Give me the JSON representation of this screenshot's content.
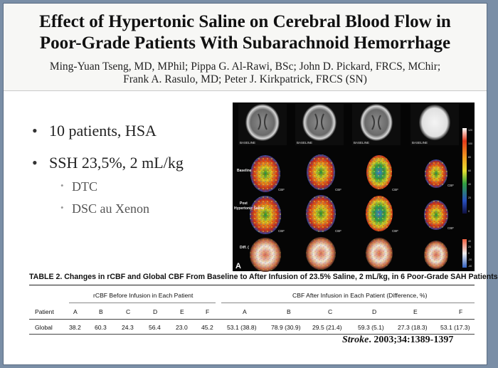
{
  "header": {
    "title_line1": "Effect of Hypertonic Saline on Cerebral Blood Flow in",
    "title_line2": "Poor-Grade Patients With Subarachnoid Hemorrhage",
    "authors_line1": "Ming-Yuan Tseng, MD, MPhil; Pippa G. Al-Rawi, BSc; John D. Pickard, FRCS, MChir;",
    "authors_line2": "Frank A. Rasulo, MD; Peter J. Kirkpatrick, FRCS (SN)"
  },
  "bullets": {
    "main": [
      "10 patients, HSA",
      "SSH 23,5%, 2 mL/kg"
    ],
    "sub": [
      "DTC",
      "DSC au Xenon"
    ]
  },
  "figure": {
    "panel_letter": "A",
    "ct_label": "BASELINE",
    "row_labels": [
      "Baseline",
      "Post",
      "Hypertonic Saline",
      "Diff. ("
    ],
    "cbf_label": "CBF",
    "scale_labels": [
      "120",
      "100",
      "80",
      "60",
      "40",
      "20",
      "0"
    ],
    "diff_scale_labels": [
      "40",
      "20",
      "0",
      "-20",
      "-40"
    ]
  },
  "table": {
    "title": "TABLE 2.   Changes in rCBF and Global CBF From Baseline to After Infusion of 23.5% Saline, 2 mL/kg, in 6 Poor-Grade SAH Patients",
    "group_before": "rCBF Before Infusion in Each Patient",
    "group_after": "CBF After Infusion in Each Patient (Difference, %)",
    "col_header": "Patient",
    "patients": [
      "A",
      "B",
      "C",
      "D",
      "E",
      "F"
    ],
    "row_label": "Global",
    "before": [
      "38.2",
      "60.3",
      "24.3",
      "56.4",
      "23.0",
      "45.2"
    ],
    "after": [
      "53.1 (38.8)",
      "78.9 (30.9)",
      "29.5 (21.4)",
      "59.3 (5.1)",
      "27.3 (18.3)",
      "53.1 (17.3)"
    ]
  },
  "citation": {
    "journal": "Stroke",
    "rest": ". 2003;34:1389-1397"
  },
  "colors": {
    "background": "#7a8ea6",
    "slide": "#ffffff",
    "header_band": "#f7f7f5",
    "figure_bg": "#050505"
  }
}
